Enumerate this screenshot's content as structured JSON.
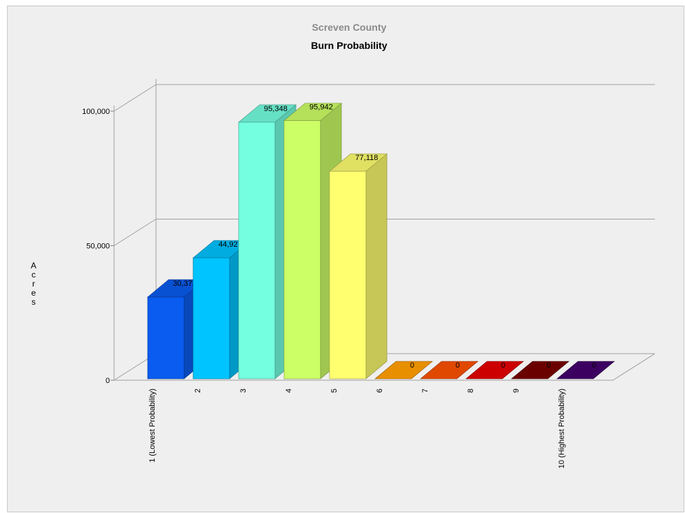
{
  "chart_data": {
    "type": "bar",
    "title": "Screven County",
    "subtitle": "Burn Probability",
    "ylabel": "Acres",
    "ylim": [
      0,
      100000
    ],
    "yticks": [
      0,
      50000,
      100000
    ],
    "ytick_labels": [
      "0",
      "50,000",
      "100,000"
    ],
    "categories": [
      "1 (Lowest Probability)",
      "2",
      "3",
      "4",
      "5",
      "6",
      "7",
      "8",
      "9",
      "10 (Highest Probability)"
    ],
    "values": [
      30372,
      44927,
      95348,
      95942,
      77118,
      0,
      0,
      0,
      0,
      0
    ],
    "value_labels": [
      "30,372",
      "44,927",
      "95,348",
      "95,942",
      "77,118",
      "0",
      "0",
      "0",
      "0",
      "0"
    ],
    "colors": [
      "#0a5cf0",
      "#00c4ff",
      "#74ffe0",
      "#ccff66",
      "#ffff70",
      "#e88f00",
      "#e04800",
      "#cc0000",
      "#6b0000",
      "#3c0060"
    ],
    "grid": true,
    "legend": "none",
    "style": "3d"
  }
}
